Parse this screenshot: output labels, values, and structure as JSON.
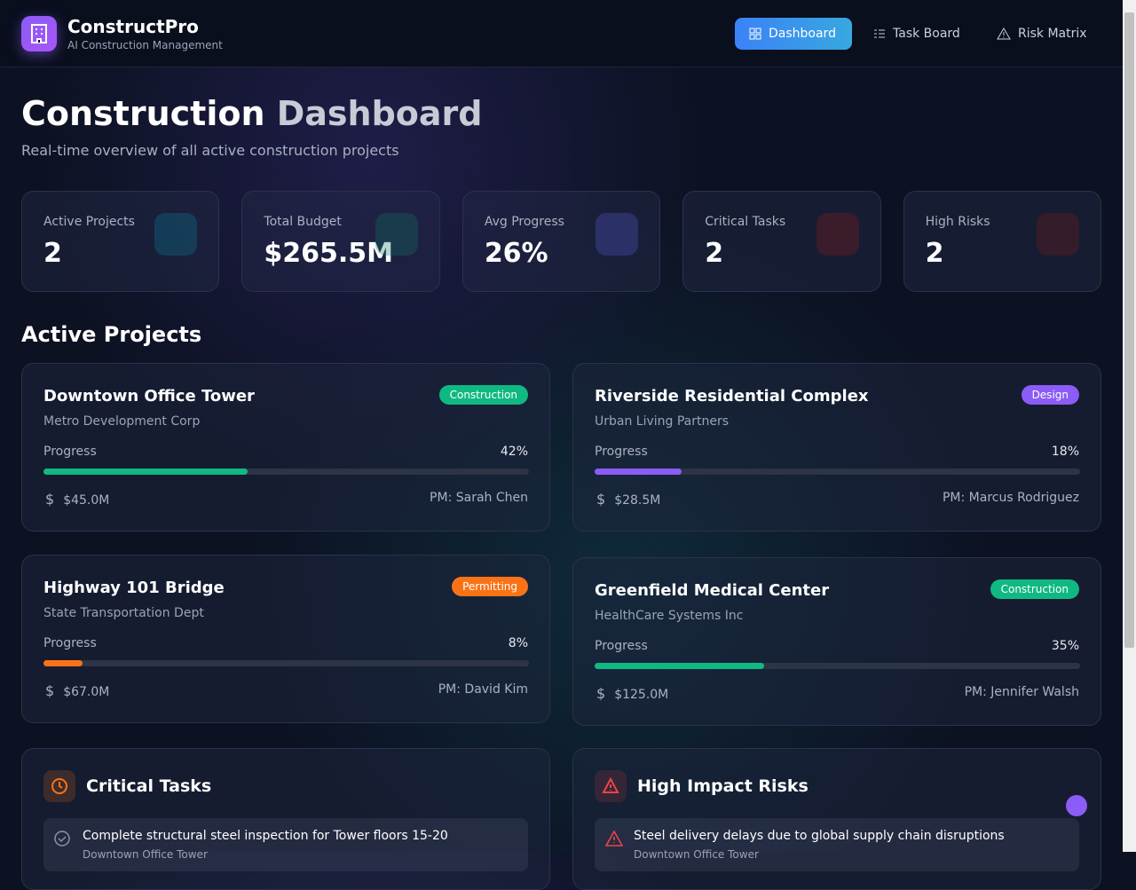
{
  "header": {
    "brand": "ConstructPro",
    "tagline": "AI Construction Management",
    "nav": [
      "Dashboard",
      "Task Board",
      "Risk Matrix"
    ]
  },
  "page": {
    "title_main": "Construction",
    "title_accent": "Dashboard",
    "subtitle": "Real-time overview of all active construction projects"
  },
  "stats": [
    {
      "label": "Active Projects",
      "value": "2"
    },
    {
      "label": "Total Budget",
      "value": "$265.5M"
    },
    {
      "label": "Avg Progress",
      "value": "26%"
    },
    {
      "label": "Critical Tasks",
      "value": "2"
    },
    {
      "label": "High Risks",
      "value": "2"
    }
  ],
  "section_title": "Active Projects",
  "progress_label": "Progress",
  "projects": [
    {
      "name": "Downtown Office Tower",
      "client": "Metro Development Corp",
      "status": "Construction",
      "color": "#10b981",
      "progress": {
        "value": 42,
        "label": "42%"
      },
      "budget": "$45.0M",
      "pm": "PM: Sarah Chen"
    },
    {
      "name": "Riverside Residential Complex",
      "client": "Urban Living Partners",
      "status": "Design",
      "color": "#8b5cf6",
      "progress": {
        "value": 18,
        "label": "18%"
      },
      "budget": "$28.5M",
      "pm": "PM: Marcus Rodriguez"
    },
    {
      "name": "Highway 101 Bridge",
      "client": "State Transportation Dept",
      "status": "Permitting",
      "color": "#f97316",
      "progress": {
        "value": 8,
        "label": "8%"
      },
      "budget": "$67.0M",
      "pm": "PM: David Kim"
    },
    {
      "name": "Greenfield Medical Center",
      "client": "HealthCare Systems Inc",
      "status": "Construction",
      "color": "#10b981",
      "progress": {
        "value": 35,
        "label": "35%"
      },
      "budget": "$125.0M",
      "pm": "PM: Jennifer Walsh"
    }
  ],
  "tasks": {
    "title": "Critical Tasks",
    "items": [
      {
        "text": "Complete structural steel inspection for Tower floors 15-20",
        "project": "Downtown Office Tower"
      }
    ]
  },
  "risks": {
    "title": "High Impact Risks",
    "items": [
      {
        "text": "Steel delivery delays due to global supply chain disruptions",
        "project": "Downtown Office Tower"
      }
    ]
  }
}
